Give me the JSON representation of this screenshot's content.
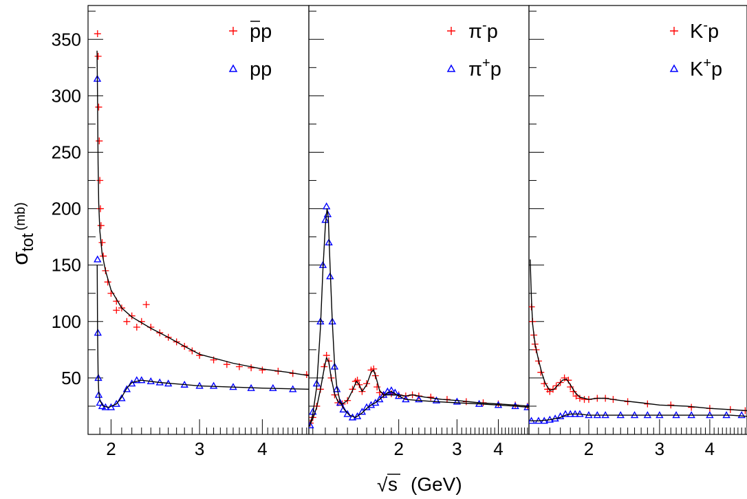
{
  "chart_data": {
    "type": "scatter",
    "title": "",
    "ylabel": "σtot (mb)",
    "ylabel_main": "σ",
    "ylabel_sub": "tot",
    "ylabel_unit": "(mb)",
    "xlabel_radical": "√",
    "xlabel_var": "s",
    "xlabel_unit": "(GeV)",
    "y_axis": {
      "ylim": [
        0,
        380
      ],
      "tick_labels": [
        "50",
        "100",
        "150",
        "200",
        "250",
        "300",
        "350"
      ],
      "tick_values": [
        50,
        100,
        150,
        200,
        250,
        300,
        350
      ]
    },
    "grid": false,
    "legend_placement": "top-right",
    "colors": {
      "red": "#ff0000",
      "blue": "#0000ff",
      "fit": "#000000"
    },
    "panels": [
      {
        "xlim": [
          1.8,
          4.95
        ],
        "x_tick_labels": [
          "2",
          "3",
          "4"
        ],
        "x_tick_values": [
          2,
          3,
          4
        ],
        "legend": [
          {
            "marker": "plus",
            "color": "#ff0000",
            "label_bar": "p",
            "label_rest": "p"
          },
          {
            "marker": "triangle",
            "color": "#0000ff",
            "label": "pp"
          }
        ],
        "series": [
          {
            "name": "p̄p",
            "marker": "plus",
            "color": "#ff0000",
            "x": [
              1.88,
              1.885,
              1.89,
              1.895,
              1.9,
              1.905,
              1.91,
              1.92,
              1.93,
              1.95,
              1.97,
              2.0,
              2.05,
              2.1,
              2.2,
              2.3,
              2.4,
              2.5,
              2.6,
              2.7,
              2.8,
              2.9,
              3.0,
              3.2,
              3.4,
              3.6,
              3.8,
              4.0,
              4.3,
              4.6,
              4.9,
              2.05,
              2.15,
              2.25,
              2.35
            ],
            "y": [
              355,
              335,
              290,
              260,
              225,
              200,
              185,
              170,
              158,
              145,
              135,
              125,
              118,
              112,
              105,
              100,
              95,
              90,
              86,
              82,
              78,
              74,
              70,
              66,
              62,
              60,
              59,
              57,
              56,
              54,
              53,
              110,
              100,
              95,
              115
            ]
          },
          {
            "name": "pp",
            "marker": "triangle",
            "color": "#0000ff",
            "x": [
              1.878,
              1.88,
              1.883,
              1.887,
              1.89,
              1.9,
              1.92,
              1.95,
              2.0,
              2.05,
              2.1,
              2.15,
              2.2,
              2.25,
              2.3,
              2.4,
              2.5,
              2.6,
              2.8,
              3.0,
              3.2,
              3.5,
              3.8,
              4.2,
              4.6
            ],
            "y": [
              315,
              155,
              90,
              50,
              35,
              28,
              25,
              24,
              24,
              27,
              32,
              40,
              45,
              48,
              48,
              47,
              46,
              45,
              44,
              43,
              43,
              42,
              41,
              41,
              40
            ]
          }
        ],
        "fit_curves": [
          {
            "x": [
              1.876,
              1.88,
              1.885,
              1.89,
              1.9,
              1.92,
              1.95,
              2.0,
              2.1,
              2.2,
              2.4,
              2.6,
              2.8,
              3.0,
              3.5,
              4.0,
              4.5,
              4.95
            ],
            "y": [
              340,
              300,
              240,
              205,
              180,
              160,
              145,
              128,
              112,
              104,
              94,
              86,
              78,
              71,
              63,
              58,
              55,
              52
            ]
          },
          {
            "x": [
              1.877,
              1.88,
              1.885,
              1.89,
              1.9,
              1.93,
              1.98,
              2.05,
              2.1,
              2.15,
              2.2,
              2.3,
              2.5,
              3.0,
              4.0,
              4.95
            ],
            "y": [
              150,
              95,
              55,
              38,
              30,
              25,
              24,
              27,
              33,
              41,
              46,
              48,
              46,
              43,
              41,
              40
            ]
          }
        ]
      },
      {
        "xlim": [
          1.07,
          4.95
        ],
        "x_tick_labels": [
          "2",
          "3",
          "4"
        ],
        "x_tick_values": [
          2,
          3,
          4
        ],
        "legend": [
          {
            "marker": "plus",
            "color": "#ff0000",
            "label_main": "π",
            "label_sup": "-",
            "label_end": "p"
          },
          {
            "marker": "triangle",
            "color": "#0000ff",
            "label_main": "π",
            "label_sup": "+",
            "label_end": "p"
          }
        ],
        "series": [
          {
            "name": "π⁻p",
            "marker": "plus",
            "color": "#ff0000",
            "x": [
              1.08,
              1.1,
              1.13,
              1.16,
              1.19,
              1.21,
              1.23,
              1.25,
              1.28,
              1.31,
              1.35,
              1.4,
              1.45,
              1.48,
              1.5,
              1.52,
              1.55,
              1.6,
              1.65,
              1.68,
              1.7,
              1.72,
              1.75,
              1.8,
              1.9,
              2.0,
              2.1,
              2.2,
              2.3,
              2.5,
              2.8,
              3.2,
              3.6,
              4.0,
              4.5,
              4.9
            ],
            "y": [
              10,
              15,
              25,
              40,
              60,
              70,
              65,
              50,
              35,
              28,
              27,
              30,
              40,
              47,
              48,
              44,
              38,
              45,
              57,
              58,
              52,
              42,
              37,
              35,
              36,
              35,
              34,
              35,
              34,
              33,
              31,
              29,
              28,
              27,
              26,
              25
            ]
          },
          {
            "name": "π⁺p",
            "marker": "triangle",
            "color": "#0000ff",
            "x": [
              1.08,
              1.1,
              1.13,
              1.16,
              1.18,
              1.2,
              1.21,
              1.22,
              1.23,
              1.24,
              1.26,
              1.28,
              1.3,
              1.33,
              1.36,
              1.4,
              1.45,
              1.5,
              1.55,
              1.6,
              1.65,
              1.7,
              1.75,
              1.8,
              1.85,
              1.9,
              1.95,
              2.0,
              2.1,
              2.3,
              2.6,
              3.0,
              3.5,
              4.0,
              4.5,
              4.9
            ],
            "y": [
              8,
              20,
              45,
              100,
              150,
              190,
              202,
              195,
              170,
              140,
              100,
              60,
              40,
              28,
              22,
              18,
              15,
              16,
              20,
              24,
              26,
              28,
              31,
              35,
              38,
              39,
              37,
              34,
              31,
              31,
              30,
              29,
              27,
              26,
              25,
              24
            ]
          }
        ],
        "fit_curves": [
          {
            "x": [
              1.075,
              1.1,
              1.13,
              1.16,
              1.19,
              1.21,
              1.23,
              1.25,
              1.28,
              1.31,
              1.35,
              1.4,
              1.45,
              1.49,
              1.52,
              1.55,
              1.6,
              1.65,
              1.68,
              1.71,
              1.75,
              1.8,
              1.9,
              2.0,
              2.1,
              2.2,
              2.4,
              2.7,
              3.0,
              3.5,
              4.0,
              4.5,
              4.95
            ],
            "y": [
              8,
              14,
              24,
              40,
              58,
              68,
              64,
              50,
              36,
              29,
              27,
              30,
              39,
              47,
              44,
              38,
              44,
              55,
              57,
              50,
              39,
              35,
              35,
              35,
              34,
              35,
              33,
              31,
              30,
              28,
              27,
              26,
              25
            ]
          },
          {
            "x": [
              1.075,
              1.1,
              1.13,
              1.16,
              1.18,
              1.2,
              1.215,
              1.225,
              1.24,
              1.26,
              1.28,
              1.3,
              1.33,
              1.37,
              1.42,
              1.48,
              1.55,
              1.6,
              1.65,
              1.7,
              1.75,
              1.8,
              1.85,
              1.9,
              1.95,
              2.0,
              2.1,
              2.3,
              2.6,
              3.0,
              3.5,
              4.0,
              4.5,
              4.95
            ],
            "y": [
              7,
              18,
              42,
              95,
              145,
              185,
              200,
              192,
              150,
              100,
              62,
              42,
              29,
              22,
              17,
              15,
              19,
              23,
              26,
              28,
              31,
              34,
              37,
              38,
              36,
              34,
              31,
              30,
              29,
              28,
              27,
              26,
              25,
              24
            ]
          }
        ]
      },
      {
        "xlim": [
          1.42,
          4.95
        ],
        "x_tick_labels": [
          "2",
          "3",
          "4"
        ],
        "x_tick_values": [
          2,
          3,
          4
        ],
        "legend": [
          {
            "marker": "plus",
            "color": "#ff0000",
            "label_main": "K",
            "label_sup": "-",
            "label_end": "p"
          },
          {
            "marker": "triangle",
            "color": "#0000ff",
            "label_main": "K",
            "label_sup": "+",
            "label_end": "p"
          }
        ],
        "series": [
          {
            "name": "K⁻p",
            "marker": "plus",
            "color": "#ff0000",
            "x": [
              1.44,
              1.45,
              1.46,
              1.47,
              1.48,
              1.5,
              1.52,
              1.55,
              1.58,
              1.6,
              1.63,
              1.66,
              1.7,
              1.74,
              1.78,
              1.8,
              1.83,
              1.86,
              1.9,
              1.95,
              2.0,
              2.1,
              2.2,
              2.3,
              2.5,
              2.8,
              3.2,
              3.6,
              4.0,
              4.5,
              4.9
            ],
            "y": [
              113,
              100,
              88,
              80,
              75,
              65,
              55,
              45,
              40,
              38,
              40,
              43,
              46,
              50,
              48,
              42,
              38,
              34,
              32,
              31,
              31,
              32,
              32,
              31,
              29,
              27,
              26,
              24,
              23,
              22,
              21
            ]
          },
          {
            "name": "K⁺p",
            "marker": "triangle",
            "color": "#0000ff",
            "x": [
              1.44,
              1.5,
              1.55,
              1.6,
              1.65,
              1.7,
              1.75,
              1.8,
              1.85,
              1.9,
              2.0,
              2.1,
              2.2,
              2.4,
              2.6,
              2.8,
              3.0,
              3.3,
              3.6,
              4.0,
              4.4,
              4.8
            ],
            "y": [
              12,
              12,
              12,
              13,
              14,
              16,
              18,
              18,
              18,
              18,
              17,
              17,
              17,
              17,
              17,
              17,
              17,
              17,
              17,
              17,
              17,
              17
            ]
          }
        ],
        "fit_curves": [
          {
            "x": [
              1.43,
              1.44,
              1.45,
              1.47,
              1.5,
              1.53,
              1.56,
              1.6,
              1.64,
              1.68,
              1.72,
              1.76,
              1.8,
              1.85,
              1.9,
              2.0,
              2.1,
              2.2,
              2.4,
              2.7,
              3.0,
              3.5,
              4.0,
              4.5,
              4.95
            ],
            "y": [
              155,
              120,
              98,
              80,
              66,
              54,
              45,
              39,
              40,
              44,
              48,
              49,
              44,
              37,
              33,
              31,
              32,
              32,
              30,
              28,
              26,
              25,
              23,
              22,
              21
            ]
          },
          {
            "x": [
              1.43,
              1.5,
              1.6,
              1.7,
              1.75,
              1.8,
              1.9,
              2.0,
              2.5,
              3.0,
              3.5,
              4.0,
              4.5,
              4.95
            ],
            "y": [
              12,
              12,
              13,
              15,
              17,
              18,
              18,
              17,
              17,
              17,
              17,
              17,
              17,
              16
            ]
          }
        ]
      }
    ]
  }
}
